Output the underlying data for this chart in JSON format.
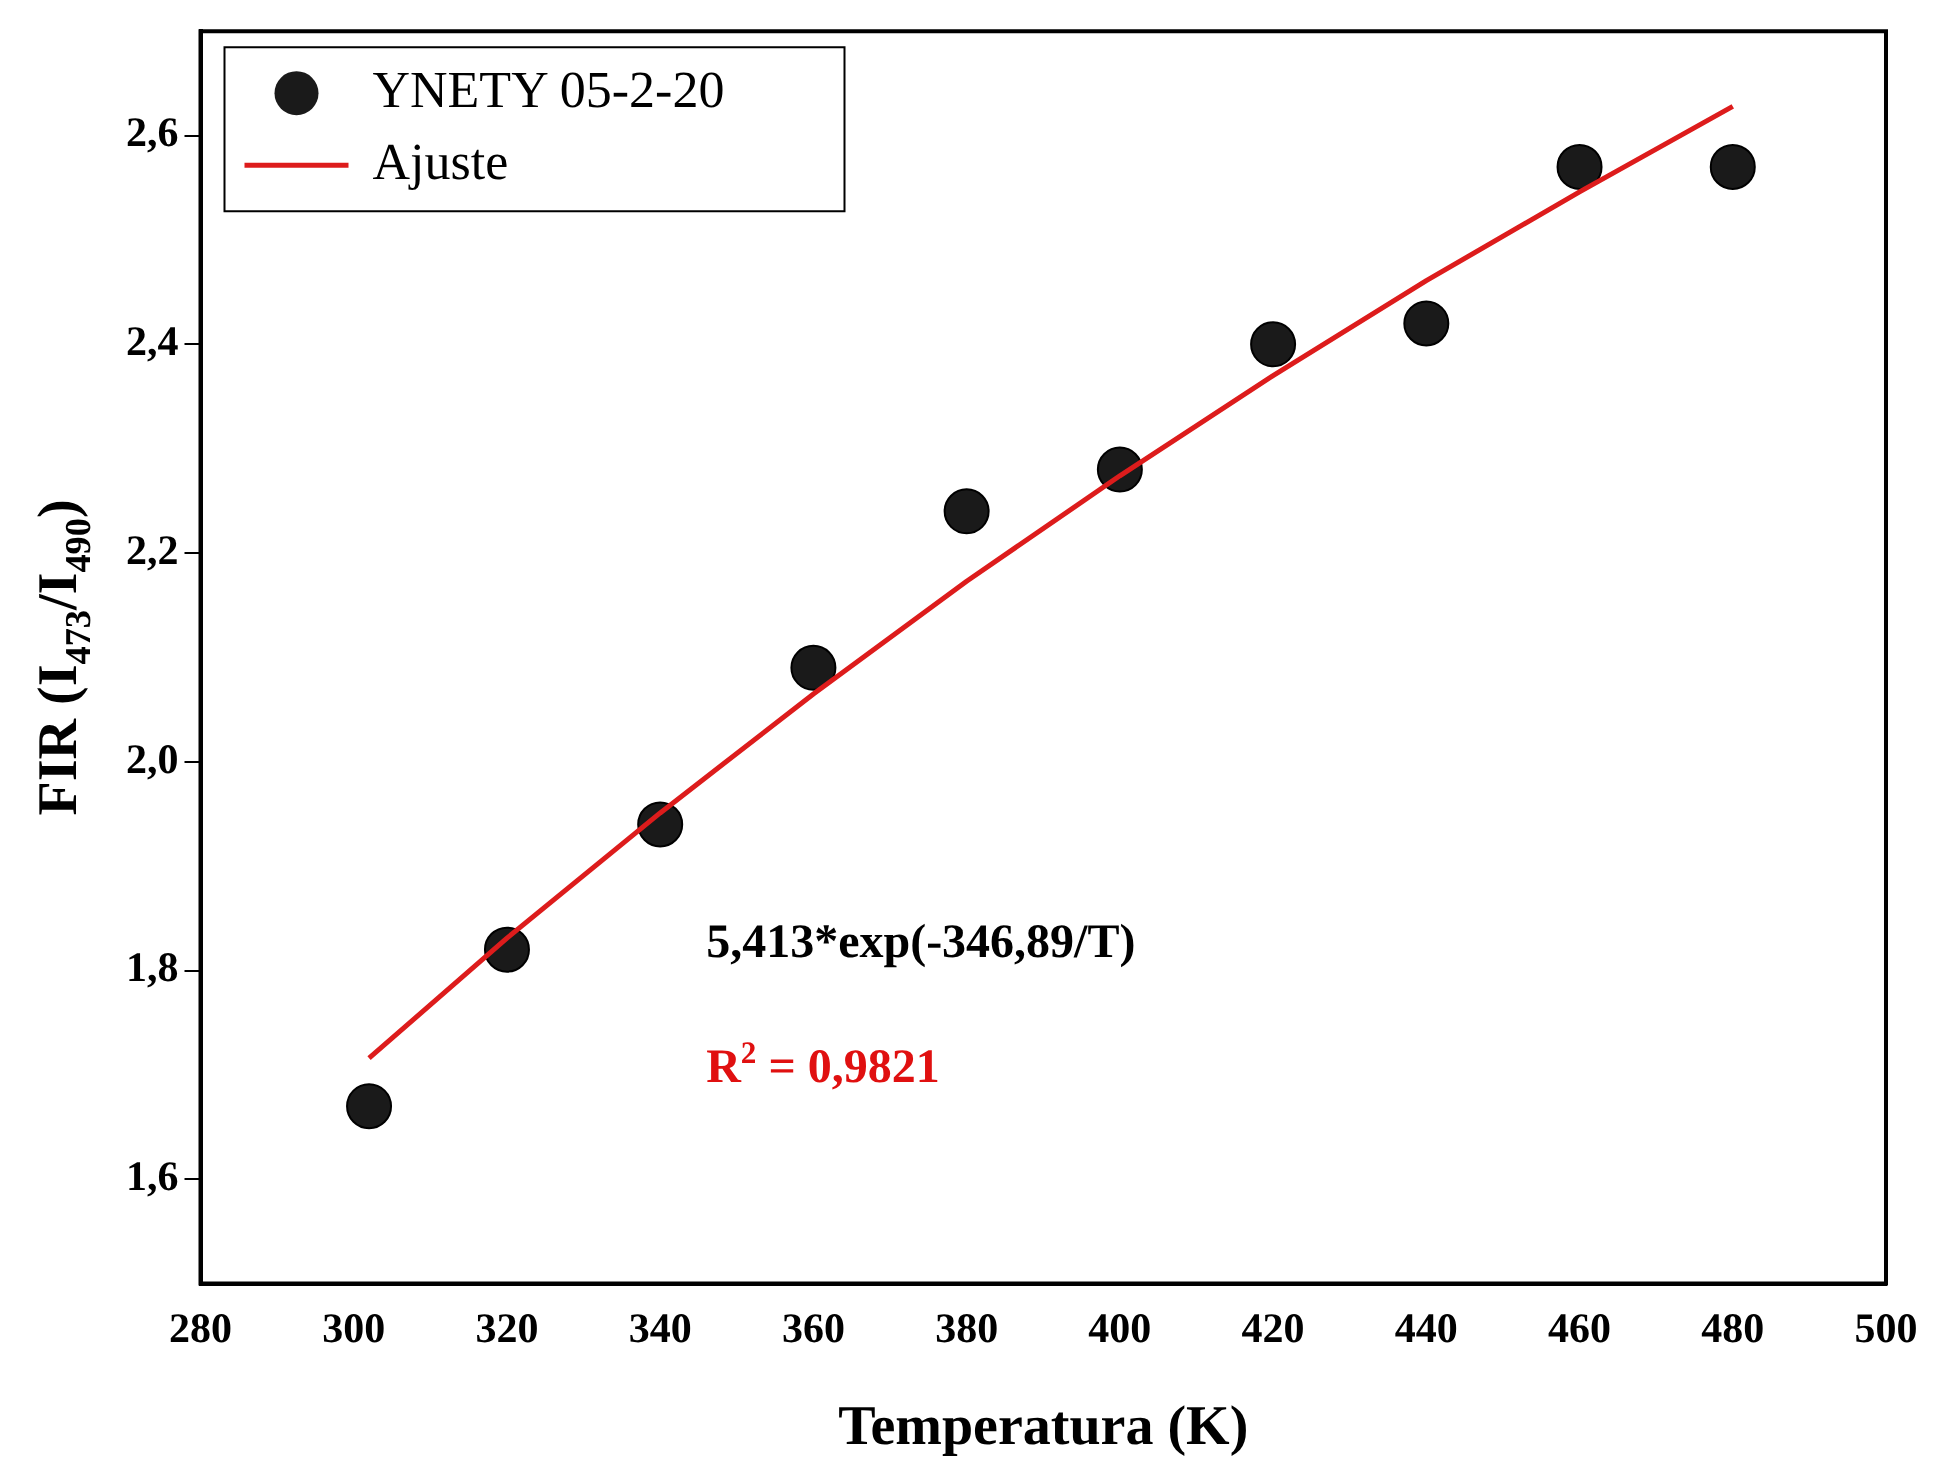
{
  "chart_data": {
    "type": "scatter",
    "xlabel": "Temperatura (K)",
    "ylabel": "FIR (I$_{473}$/I$_{490}$)",
    "xlim": [
      280,
      500
    ],
    "xticks": [
      280,
      300,
      320,
      340,
      360,
      380,
      400,
      420,
      440,
      460,
      480,
      500
    ],
    "ylim": [
      1.5,
      2.7
    ],
    "yticks": [
      {
        "value": 1.6,
        "label": "1,6"
      },
      {
        "value": 1.8,
        "label": "1,8"
      },
      {
        "value": 2.0,
        "label": "2,0"
      },
      {
        "value": 2.2,
        "label": "2,2"
      },
      {
        "value": 2.4,
        "label": "2,4"
      },
      {
        "value": 2.6,
        "label": "2,6"
      }
    ],
    "series": [
      {
        "name": "YNETY 05-2-20",
        "marker": "circle",
        "color": "#1a1a1a",
        "x": [
          302,
          320,
          340,
          360,
          380,
          400,
          420,
          440,
          460,
          480
        ],
        "values": [
          1.67,
          1.82,
          1.94,
          2.09,
          2.24,
          2.28,
          2.4,
          2.42,
          2.57,
          2.57
        ]
      },
      {
        "name": "Ajuste",
        "type": "line",
        "marker": "none",
        "line_style": "solid",
        "color": "#dd1c1c",
        "x": [
          302,
          320,
          340,
          360,
          380,
          400,
          420,
          440,
          460,
          480
        ],
        "values": [
          1.716,
          1.831,
          1.951,
          2.065,
          2.173,
          2.274,
          2.37,
          2.461,
          2.546,
          2.628
        ]
      }
    ],
    "annotations": [
      "5,413*exp(-346,89/T)",
      "R$^{2}$ = 0,9821"
    ],
    "legend": "top left",
    "grid": false
  }
}
